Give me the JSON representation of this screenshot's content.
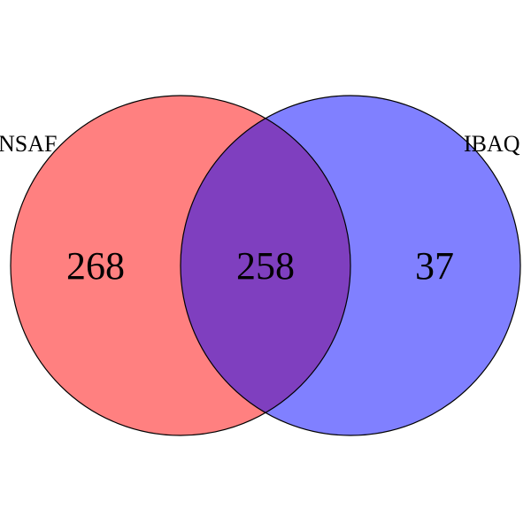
{
  "venn": {
    "sets": [
      {
        "name": "NSAF",
        "color": "#ff8080",
        "only_count": "268"
      },
      {
        "name": "IBAQ",
        "color": "#8080ff",
        "only_count": "37"
      }
    ],
    "overlap": {
      "color": "#7f3fbf",
      "count": "258"
    }
  }
}
